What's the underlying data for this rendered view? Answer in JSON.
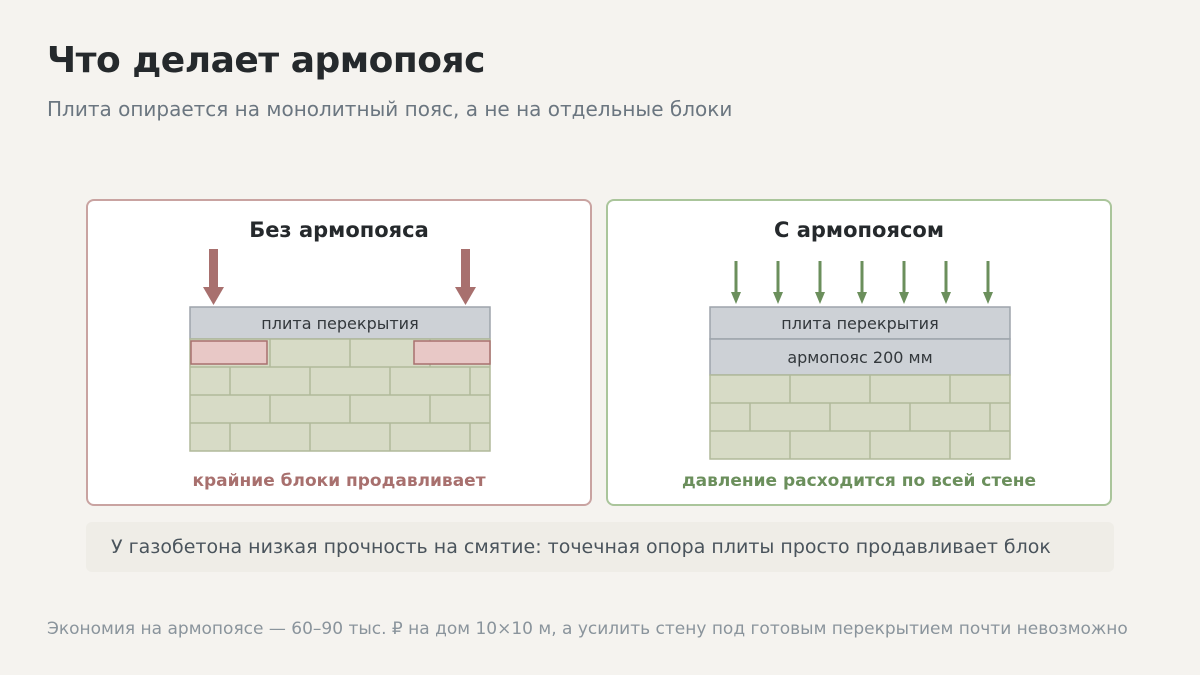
{
  "header": {
    "title": "Что делает армопояс",
    "subtitle": "Плита опирается на монолитный пояс, а не на отдельные блоки"
  },
  "panels": {
    "left": {
      "title": "Без армопояса",
      "slab_label": "плита перекрытия",
      "caption": "крайние блоки продавливает"
    },
    "right": {
      "title": "С армопоясом",
      "slab_label": "плита перекрытия",
      "belt_label": "армопояс 200 мм",
      "caption": "давление расходится по всей стене"
    }
  },
  "note": "У газобетона низкая прочность на смятие: точечная опора плиты просто продавливает блок",
  "footer": "Экономия на армопоясе — 60–90 тыс. ₽ на дом 10×10 м, а усилить стену под готовым перекрытием почти невозможно",
  "colors": {
    "background": "#f5f3ef",
    "red_accent": "#a8706e",
    "green_accent": "#6b8f5c",
    "slab": "#cdd1d6",
    "block": "#d7dbc6",
    "crushed_block": "#e8c8c6"
  }
}
